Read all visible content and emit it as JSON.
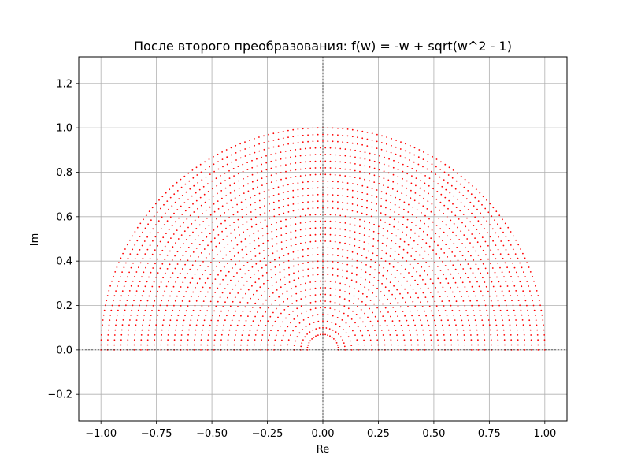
{
  "chart_data": {
    "type": "scatter",
    "title": "После второго преобразования: f(w) = -w + sqrt(w^2 - 1)",
    "xlabel": "Re",
    "ylabel": "Im",
    "xlim": [
      -1.1,
      1.1
    ],
    "ylim": [
      -0.32,
      1.32
    ],
    "xticks": [
      -1.0,
      -0.75,
      -0.5,
      -0.25,
      0.0,
      0.25,
      0.5,
      0.75,
      1.0
    ],
    "xtick_labels": [
      "−1.00",
      "−0.75",
      "−0.50",
      "−0.25",
      "0.00",
      "0.25",
      "0.50",
      "0.75",
      "1.00"
    ],
    "yticks": [
      -0.2,
      0.0,
      0.2,
      0.4,
      0.6,
      0.8,
      1.0,
      1.2
    ],
    "ytick_labels": [
      "−0.2",
      "0.0",
      "0.2",
      "0.4",
      "0.6",
      "0.8",
      "1.0",
      "1.2"
    ],
    "grid": true,
    "reference_lines": {
      "x": 0,
      "y": 0,
      "style": "dashed",
      "color": "#000000"
    },
    "marker_color": "#ff0000",
    "region": "upper unit half-disk",
    "series": [
      {
        "values": [
          {
            "r": 1.0
          },
          {
            "r": 0.97
          },
          {
            "r": 0.94
          },
          {
            "r": 0.91
          },
          {
            "r": 0.88
          },
          {
            "r": 0.85
          },
          {
            "r": 0.82
          },
          {
            "r": 0.79
          },
          {
            "r": 0.76
          },
          {
            "r": 0.73
          },
          {
            "r": 0.7
          },
          {
            "r": 0.67
          },
          {
            "r": 0.64
          },
          {
            "r": 0.61
          },
          {
            "r": 0.58
          },
          {
            "r": 0.55
          },
          {
            "r": 0.52
          },
          {
            "r": 0.49
          },
          {
            "r": 0.46
          },
          {
            "r": 0.43
          },
          {
            "r": 0.4
          },
          {
            "r": 0.37
          },
          {
            "r": 0.34
          },
          {
            "r": 0.31
          },
          {
            "r": 0.28
          },
          {
            "r": 0.25
          },
          {
            "r": 0.22
          },
          {
            "r": 0.19
          },
          {
            "r": 0.16
          },
          {
            "r": 0.13
          },
          {
            "r": 0.1
          },
          {
            "r": 0.07
          }
        ]
      }
    ]
  }
}
